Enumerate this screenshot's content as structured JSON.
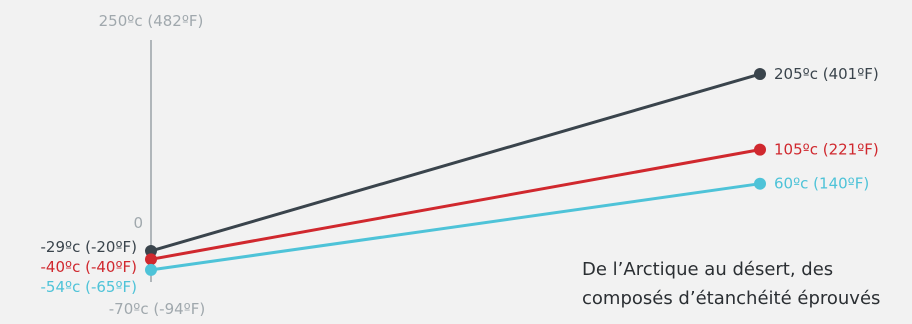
{
  "chart_data": {
    "type": "line",
    "ylim": [
      -70,
      250
    ],
    "y_ticks": [
      {
        "value": 250,
        "label": "250ºc (482ºF)"
      },
      {
        "value": 0,
        "label": "0"
      },
      {
        "value": -70,
        "label": "-70ºc (-94ºF)"
      }
    ],
    "series": [
      {
        "color": "#3a444c",
        "start": -29,
        "end": 205,
        "start_label": "-29ºc (-20ºF)",
        "end_label": "205ºc (401ºF)"
      },
      {
        "color": "#d0282e",
        "start": -40,
        "end": 105,
        "start_label": "-40ºc (-40ºF)",
        "end_label": "105ºc (221ºF)"
      },
      {
        "color": "#4ec3d8",
        "start": -54,
        "end": 60,
        "start_label": "-54ºc (-65ºF)",
        "end_label": "60ºc (140ºF)"
      }
    ],
    "grid": false,
    "legend": "none"
  },
  "caption": {
    "line1": "De l’Arctique au désert, des",
    "line2": "composés d’étanchéité éprouvés"
  }
}
